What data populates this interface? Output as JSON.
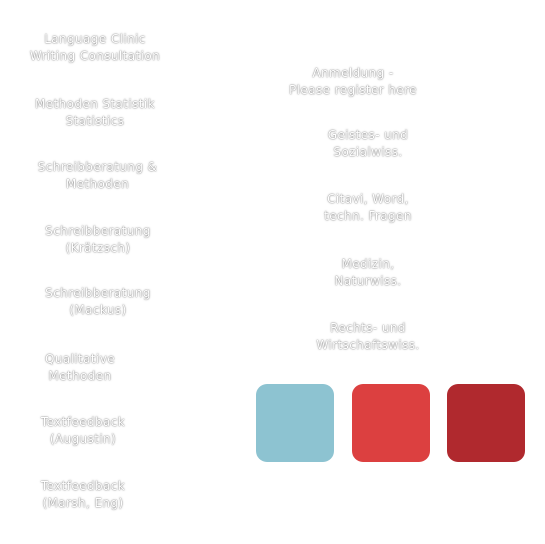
{
  "left_menu": [
    {
      "line1": "Language Clinic",
      "line2": "Writing Consultation"
    },
    {
      "line1": "Methoden Statistik",
      "line2": "Statistics"
    },
    {
      "line1": "Schreibberatung &",
      "line2": "Methoden"
    },
    {
      "line1": "Schreibberatung",
      "line2": "(Krätzsch)"
    },
    {
      "line1": "Schreibberatung",
      "line2": "(Mackus)"
    },
    {
      "line1": "Qualitative",
      "line2": "Methoden"
    },
    {
      "line1": "Textfeedback",
      "line2": "(Augustin)"
    },
    {
      "line1": "Textfeedback",
      "line2": "(Marsh, Eng)"
    }
  ],
  "right_menu": [
    {
      "line1": "Anmeldung -",
      "line2": "Please register here"
    },
    {
      "line1": "Geistes- und",
      "line2": "Sozialwiss."
    },
    {
      "line1": "Citavi, Word,",
      "line2": "techn. Fragen"
    },
    {
      "line1": "Medizin,",
      "line2": "Naturwiss."
    },
    {
      "line1": "Rechts- und",
      "line2": "Wirtschaftswiss."
    }
  ],
  "swatches": [
    {
      "color": "#8dc3d1"
    },
    {
      "color": "#dc4040"
    },
    {
      "color": "#b0292e"
    }
  ]
}
